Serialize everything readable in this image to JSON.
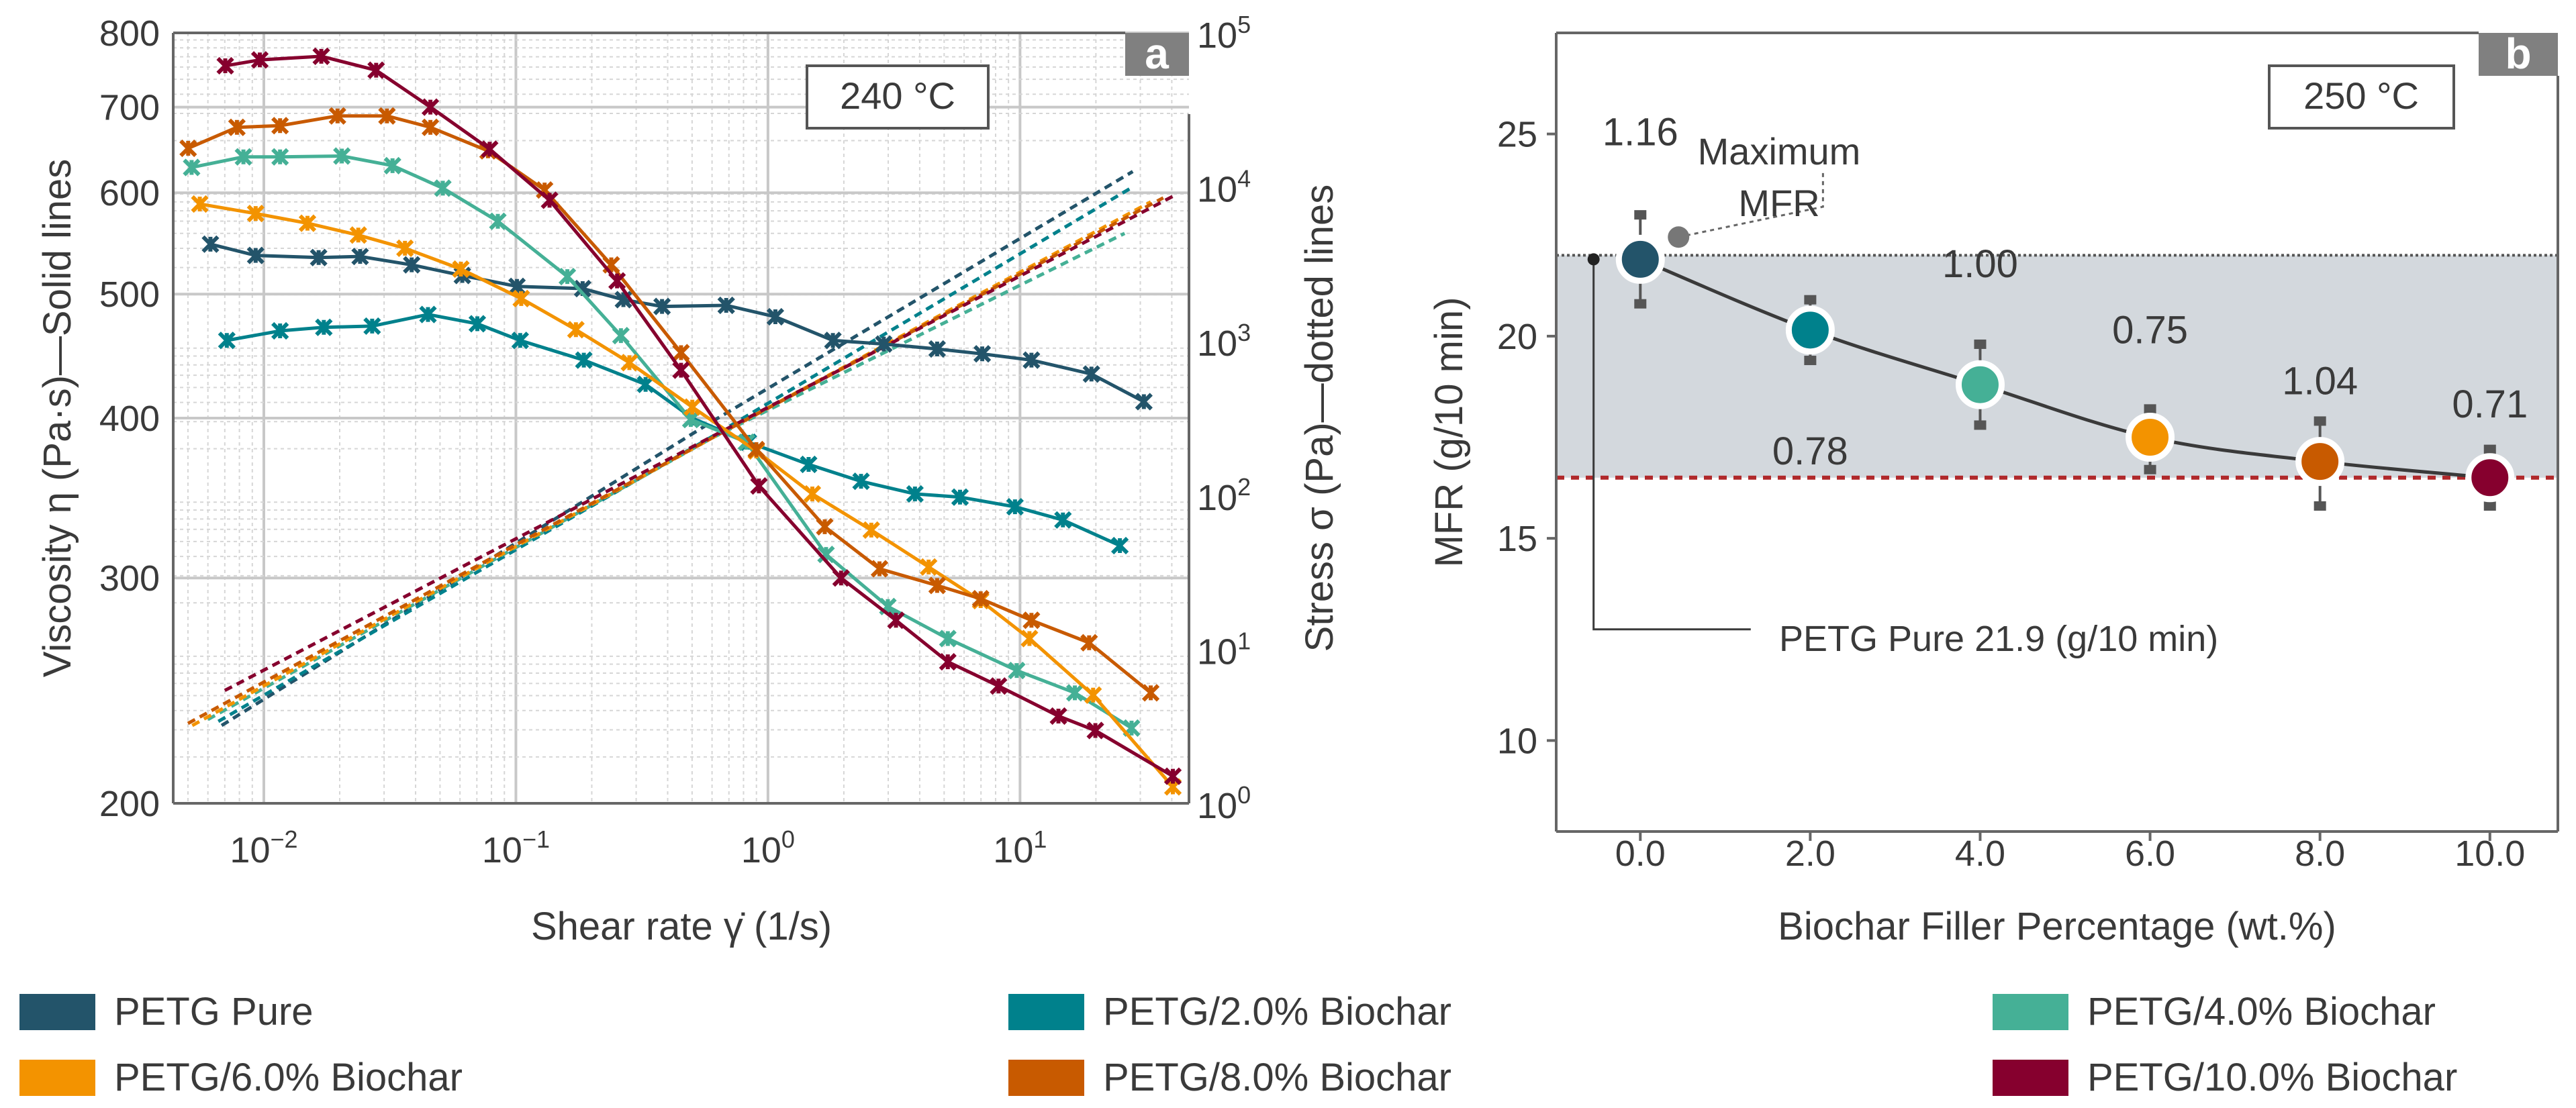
{
  "chart_data": [
    {
      "panel": "a",
      "type": "line",
      "annotation": "240 °C",
      "xlabel": "Shear rate γ̇  (1/s)",
      "ylabel": "Viscosity η (Pa·s)—Solid lines",
      "y2label": "Stress σ (Pa)—dotted lines",
      "xscale": "log",
      "yscale": "log",
      "y2scale": "log",
      "xlim": [
        0.00437,
        46.8
      ],
      "ylim": [
        200,
        800
      ],
      "y2lim": [
        1,
        100000
      ],
      "xticks": [
        {
          "base": "10",
          "exp": "−2",
          "value": 0.01
        },
        {
          "base": "10",
          "exp": "−1",
          "value": 0.1
        },
        {
          "base": "10",
          "exp": "0",
          "value": 1
        },
        {
          "base": "10",
          "exp": "1",
          "value": 10
        }
      ],
      "yticks": [
        800,
        700,
        600,
        500,
        400,
        300,
        200
      ],
      "y2ticks": [
        {
          "base": "10",
          "exp": "5",
          "value": 100000
        },
        {
          "base": "10",
          "exp": "4",
          "value": 10000
        },
        {
          "base": "10",
          "exp": "3",
          "value": 1000
        },
        {
          "base": "10",
          "exp": "2",
          "value": 100
        },
        {
          "base": "10",
          "exp": "1",
          "value": 10
        },
        {
          "base": "10",
          "exp": "0",
          "value": 1
        }
      ],
      "grid": true,
      "series": [
        {
          "name": "PETG Pure",
          "color": "#23546a",
          "x": [
            0.00614,
            0.00928,
            0.0165,
            0.0241,
            0.0386,
            0.0613,
            0.101,
            0.184,
            0.267,
            0.38,
            0.683,
            1.07,
            1.81,
            2.88,
            4.69,
            7.08,
            11.1,
            19.2,
            31.0
          ],
          "viscosity": [
            547,
            536,
            534,
            535,
            527,
            517,
            507,
            505,
            495,
            489,
            490,
            480,
            460,
            457,
            453,
            449,
            444,
            433,
            412
          ],
          "stress_x": [
            0.0068,
            0.6,
            28
          ],
          "stress": [
            3.2,
            300,
            12600
          ]
        },
        {
          "name": "PETG/2.0% Biochar",
          "color": "#00818c",
          "x": [
            0.00713,
            0.0116,
            0.0173,
            0.0269,
            0.0448,
            0.0703,
            0.104,
            0.186,
            0.327,
            0.501,
            0.836,
            1.45,
            2.34,
            3.83,
            5.78,
            9.55,
            14.8,
            24.9
          ],
          "viscosity": [
            460,
            468,
            471,
            472,
            482,
            474,
            460,
            444,
            425,
            400,
            383,
            368,
            357,
            349,
            347,
            341,
            333,
            318
          ],
          "stress_x": [
            0.0066,
            0.6,
            28
          ],
          "stress": [
            3.4,
            240,
            10000
          ]
        },
        {
          "name": "PETG/4.0% Biochar",
          "color": "#45b096",
          "x": [
            0.00517,
            0.0083,
            0.0116,
            0.0204,
            0.0324,
            0.0513,
            0.0848,
            0.16,
            0.261,
            0.494,
            0.822,
            1.7,
            2.99,
            5.17,
            9.7,
            16.5,
            27.7
          ],
          "viscosity": [
            628,
            640,
            640,
            641,
            630,
            605,
            570,
            516,
            464,
            399,
            383,
            313,
            285,
            269,
            254,
            244,
            229
          ],
          "stress_x": [
            0.006,
            0.6,
            26
          ],
          "stress": [
            3.5,
            235,
            5000
          ]
        },
        {
          "name": "PETG/6.0% Biochar",
          "color": "#f39300",
          "x": [
            0.00557,
            0.00928,
            0.0149,
            0.0237,
            0.0363,
            0.0605,
            0.105,
            0.173,
            0.282,
            0.501,
            0.899,
            1.5,
            2.57,
            4.34,
            6.98,
            10.9,
            19.5,
            40.4
          ],
          "viscosity": [
            588,
            578,
            568,
            556,
            543,
            523,
            496,
            469,
            442,
            408,
            377,
            349,
            327,
            306,
            288,
            269,
            243,
            206
          ],
          "stress_x": [
            0.0052,
            0.6,
            33
          ],
          "stress": [
            3.2,
            235,
            8000
          ]
        },
        {
          "name": "PETG/8.0% Biochar",
          "color": "#c85a00",
          "x": [
            0.00501,
            0.00782,
            0.0116,
            0.0196,
            0.0308,
            0.0458,
            0.0775,
            0.13,
            0.239,
            0.452,
            0.899,
            1.68,
            2.77,
            4.69,
            6.98,
            11.1,
            18.8,
            33.0
          ],
          "viscosity": [
            650,
            675,
            677,
            689,
            689,
            675,
            647,
            603,
            527,
            450,
            378,
            329,
            305,
            296,
            289,
            278,
            267,
            244
          ],
          "stress_x": [
            0.005,
            0.6,
            37
          ],
          "stress": [
            3.3,
            235,
            8500
          ]
        },
        {
          "name": "PETG/10.0% Biochar",
          "color": "#86002e",
          "x": [
            0.00703,
            0.00964,
            0.0169,
            0.0279,
            0.0458,
            0.0787,
            0.136,
            0.252,
            0.452,
            0.921,
            1.95,
            3.22,
            5.17,
            8.22,
            14.2,
            19.9,
            40.4
          ],
          "viscosity": [
            754,
            762,
            767,
            748,
            700,
            649,
            592,
            512,
            436,
            354,
            300,
            278,
            258,
            247,
            234,
            228,
            210
          ],
          "stress_x": [
            0.007,
            0.6,
            40.4
          ],
          "stress": [
            5.4,
            240,
            8700
          ]
        }
      ]
    },
    {
      "panel": "b",
      "type": "scatter",
      "annotation": "250 °C",
      "xlabel": "Biochar Filler Percentage (wt.%)",
      "ylabel": "MFR (g/10 min)",
      "xlim": [
        -0.99,
        10.8
      ],
      "ylim": [
        7.75,
        27.5
      ],
      "xticks": [
        "0.0",
        "2.0",
        "4.0",
        "6.0",
        "8.0",
        "10.0"
      ],
      "yticks": [
        25,
        20,
        15,
        10
      ],
      "points": [
        {
          "x": 0,
          "y": 21.9,
          "low": 20.8,
          "high": 23.0,
          "label": "1.16",
          "color": "#23546a"
        },
        {
          "x": 2,
          "y": 20.15,
          "low": 19.4,
          "high": 20.9,
          "label": "0.78",
          "color": "#00818c"
        },
        {
          "x": 4,
          "y": 18.8,
          "low": 17.8,
          "high": 19.8,
          "label": "1.00",
          "color": "#45b096"
        },
        {
          "x": 6,
          "y": 17.5,
          "low": 16.7,
          "high": 18.2,
          "label": "0.75",
          "color": "#f39300"
        },
        {
          "x": 8,
          "y": 16.9,
          "low": 15.8,
          "high": 17.9,
          "label": "1.04",
          "color": "#c85a00"
        },
        {
          "x": 10,
          "y": 16.5,
          "low": 15.8,
          "high": 17.2,
          "label": "0.71",
          "color": "#86002e"
        }
      ],
      "max_line": 22.0,
      "min_line": 16.5,
      "annotations": {
        "max_mfr_line1": "Maximum",
        "max_mfr_line2": "MFR",
        "pure": "PETG Pure 21.9 (g/10 min)"
      },
      "colors": {
        "band": "#d3d8dd",
        "min_line": "#b0282a"
      }
    }
  ],
  "panel_labels": {
    "a": "a",
    "b": "b"
  },
  "legend": [
    {
      "label": "PETG Pure",
      "color": "#23546a"
    },
    {
      "label": "PETG/2.0% Biochar",
      "color": "#00818c"
    },
    {
      "label": "PETG/4.0% Biochar",
      "color": "#45b096"
    },
    {
      "label": "PETG/6.0% Biochar",
      "color": "#f39300"
    },
    {
      "label": "PETG/8.0% Biochar",
      "color": "#c85a00"
    },
    {
      "label": "PETG/10.0% Biochar",
      "color": "#86002e"
    }
  ]
}
